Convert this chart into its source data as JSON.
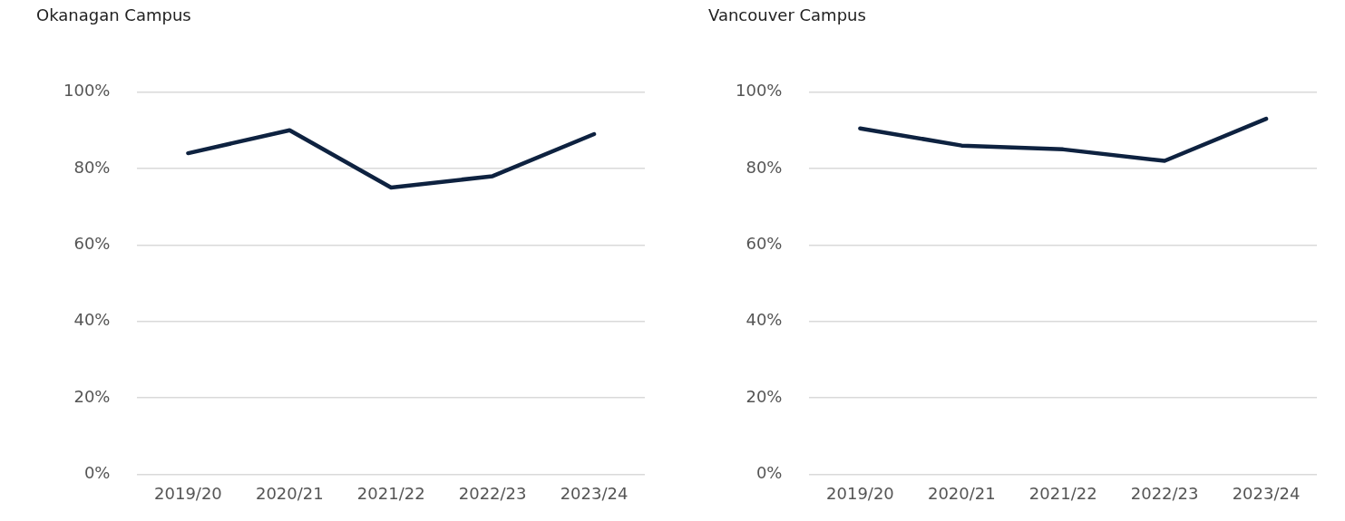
{
  "chart_data": [
    {
      "type": "line",
      "title": "Okanagan Campus",
      "categories": [
        "2019/20",
        "2020/21",
        "2021/22",
        "2022/23",
        "2023/24"
      ],
      "series": [
        {
          "color": "#0e2240",
          "values": [
            84,
            90,
            75,
            78,
            89
          ]
        }
      ],
      "ylim": [
        0,
        100
      ],
      "yticks": [
        {
          "value": 0,
          "label": "0%"
        },
        {
          "value": 20,
          "label": "20%"
        },
        {
          "value": 40,
          "label": "40%"
        },
        {
          "value": 60,
          "label": "60%"
        },
        {
          "value": 80,
          "label": "80%"
        },
        {
          "value": 100,
          "label": "100%"
        }
      ],
      "grid": "y",
      "legend": false
    },
    {
      "type": "line",
      "title": "Vancouver Campus",
      "categories": [
        "2019/20",
        "2020/21",
        "2021/22",
        "2022/23",
        "2023/24"
      ],
      "series": [
        {
          "color": "#0e2240",
          "values": [
            90.5,
            86,
            85,
            82,
            93
          ]
        }
      ],
      "ylim": [
        0,
        100
      ],
      "yticks": [
        {
          "value": 0,
          "label": "0%"
        },
        {
          "value": 20,
          "label": "20%"
        },
        {
          "value": 40,
          "label": "40%"
        },
        {
          "value": 60,
          "label": "60%"
        },
        {
          "value": 80,
          "label": "80%"
        },
        {
          "value": 100,
          "label": "100%"
        }
      ],
      "grid": "y",
      "legend": false
    }
  ]
}
